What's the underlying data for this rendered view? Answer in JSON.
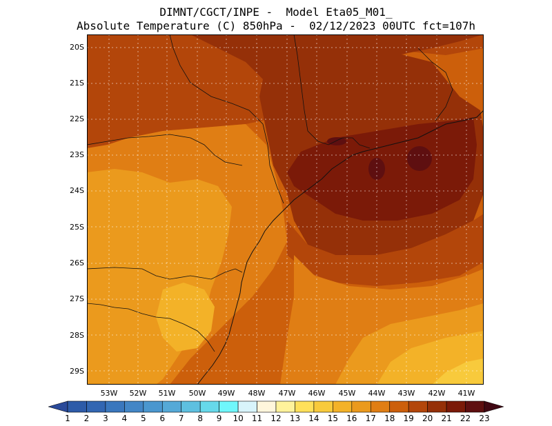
{
  "header": {
    "line1": "DIMNT/CGCT/INPE -  Model Eta05_M01_",
    "line2": "Absolute Temperature (C) 850hPa -  02/12/2023 00UTC fct=107h"
  },
  "chart_data": {
    "type": "heatmap",
    "map_extent": {
      "lon": [
        -53.9,
        -40.3
      ],
      "lat": [
        -29.5,
        -19.6
      ]
    },
    "lat_ticks": [
      "20S",
      "21S",
      "22S",
      "23S",
      "24S",
      "25S",
      "26S",
      "27S",
      "28S",
      "29S"
    ],
    "lon_ticks": [
      "53W",
      "52W",
      "51W",
      "50W",
      "49W",
      "48W",
      "47W",
      "46W",
      "45W",
      "44W",
      "43W",
      "42W",
      "41W"
    ],
    "grid": "dotted",
    "colorbar": {
      "labels": [
        "1",
        "2",
        "3",
        "4",
        "5",
        "6",
        "7",
        "8",
        "9",
        "10",
        "11",
        "12",
        "13",
        "14",
        "15",
        "16",
        "17",
        "18",
        "19",
        "20",
        "21",
        "22",
        "23"
      ],
      "colors": [
        "#2a4a9a",
        "#2d5ba8",
        "#3266b2",
        "#3a77bd",
        "#4386c6",
        "#4b97cf",
        "#55a9d7",
        "#5ec0e0",
        "#66d9ea",
        "#6ff7fb",
        "#d8f4fb",
        "#fff6dc",
        "#fff29b",
        "#ffe05a",
        "#f8ca3c",
        "#f3b228",
        "#eb9a1d",
        "#e07e14",
        "#cc5f0b",
        "#b3460a",
        "#953008",
        "#7b1a08",
        "#5e0f10",
        "#400813"
      ]
    },
    "temperature_regions": [
      {
        "value": 19,
        "note": "widespread base level"
      },
      {
        "value": 17,
        "note": "south-west interior Parana/Santa Catarina"
      },
      {
        "value": 16,
        "note": "core south-west interior and south-east ocean"
      },
      {
        "value": 15,
        "note": "far south-east ocean"
      },
      {
        "value": 20,
        "note": "north-west corner"
      },
      {
        "value": 21,
        "note": "Sao Paulo / Rio coast and north"
      },
      {
        "value": 22,
        "note": "offshore Rio de Janeiro"
      },
      {
        "value": 23,
        "note": "small peaks near Rio coast"
      }
    ]
  }
}
